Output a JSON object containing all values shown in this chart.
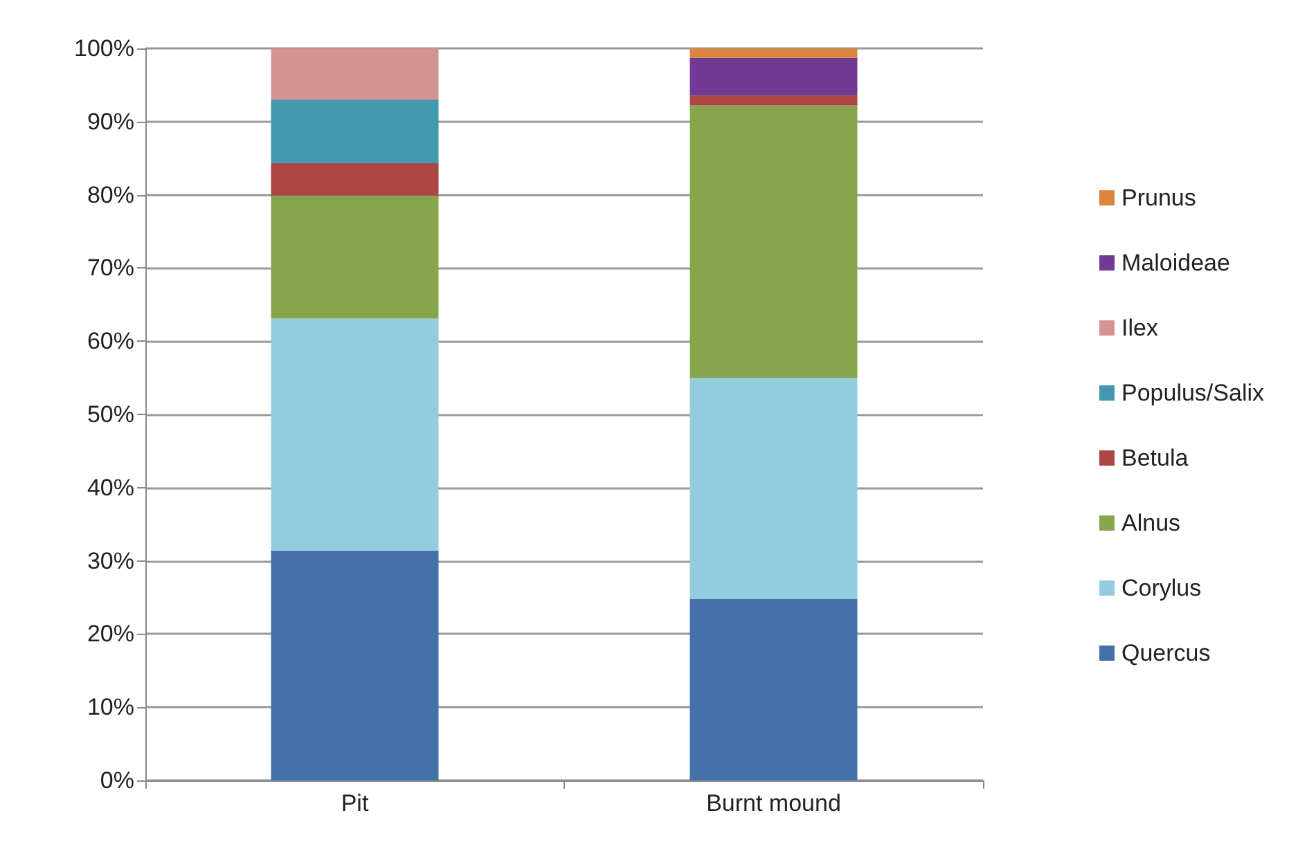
{
  "chart_data": {
    "type": "bar",
    "stacked": true,
    "categories": [
      "Pit",
      "Burnt mound"
    ],
    "series": [
      {
        "name": "Quercus",
        "color": "#4472a8",
        "values": [
          31.4,
          24.8
        ]
      },
      {
        "name": "Corylus",
        "color": "#93cddd",
        "values": [
          31.7,
          30.2
        ]
      },
      {
        "name": "Alnus",
        "color": "#88a44c",
        "values": [
          16.8,
          37.2
        ]
      },
      {
        "name": "Betula",
        "color": "#aa4643",
        "values": [
          4.4,
          1.4
        ]
      },
      {
        "name": "Populus/Salix",
        "color": "#4198af",
        "values": [
          8.7,
          0
        ]
      },
      {
        "name": "Ilex",
        "color": "#d59393",
        "values": [
          7.0,
          0
        ]
      },
      {
        "name": "Maloideae",
        "color": "#713a94",
        "values": [
          0,
          5.1
        ]
      },
      {
        "name": "Prunus",
        "color": "#db843d",
        "values": [
          0,
          1.3
        ]
      }
    ],
    "ylim": [
      0,
      100
    ],
    "yticks": [
      {
        "value": 0,
        "label": "0%"
      },
      {
        "value": 10,
        "label": "10%"
      },
      {
        "value": 20,
        "label": "20%"
      },
      {
        "value": 30,
        "label": "30%"
      },
      {
        "value": 40,
        "label": "40%"
      },
      {
        "value": 50,
        "label": "50%"
      },
      {
        "value": 60,
        "label": "60%"
      },
      {
        "value": 70,
        "label": "70%"
      },
      {
        "value": 80,
        "label": "80%"
      },
      {
        "value": 90,
        "label": "90%"
      },
      {
        "value": 100,
        "label": "100%"
      }
    ],
    "grid": "y",
    "legend": "right"
  }
}
